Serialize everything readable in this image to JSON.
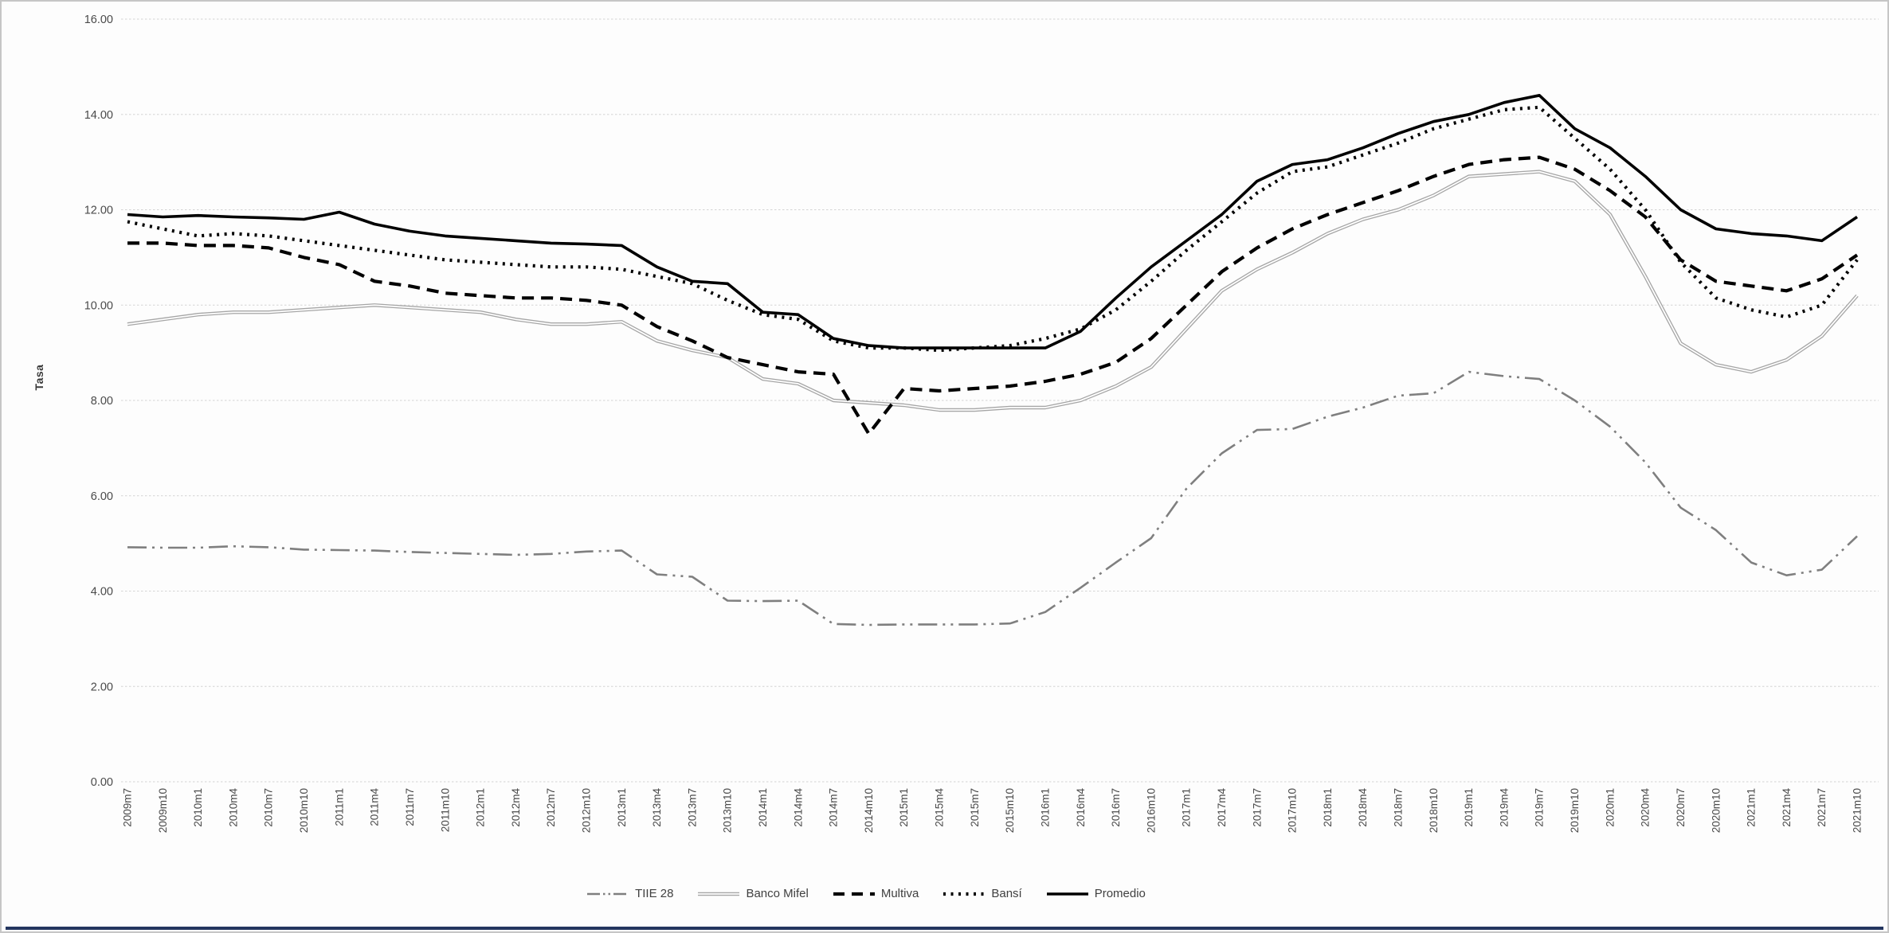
{
  "page": {
    "background": "#fdfdfd",
    "frame_border_color": "#c6c6c6",
    "bottom_bar_color": "#23355f"
  },
  "chart_data": {
    "type": "line",
    "title": "",
    "xlabel": "",
    "ylabel": "Tasa",
    "ylim": [
      0,
      16
    ],
    "ytick_step": 2,
    "ytick_labels": [
      "0.00",
      "2.00",
      "4.00",
      "6.00",
      "8.00",
      "10.00",
      "12.00",
      "14.00",
      "16.00"
    ],
    "grid": "horizontal-dashed",
    "grid_color": "#d4d4d4",
    "axis_label_color": "#4a4a4a",
    "legend_position": "bottom-center",
    "categories": [
      "2009m7",
      "2009m10",
      "2010m1",
      "2010m4",
      "2010m7",
      "2010m10",
      "2011m1",
      "2011m4",
      "2011m7",
      "2011m10",
      "2012m1",
      "2012m4",
      "2012m7",
      "2012m10",
      "2013m1",
      "2013m4",
      "2013m7",
      "2013m10",
      "2014m1",
      "2014m4",
      "2014m7",
      "2014m10",
      "2015m1",
      "2015m4",
      "2015m7",
      "2015m10",
      "2016m1",
      "2016m4",
      "2016m7",
      "2016m10",
      "2017m1",
      "2017m4",
      "2017m7",
      "2017m10",
      "2018m1",
      "2018m4",
      "2018m7",
      "2018m10",
      "2019m1",
      "2019m4",
      "2019m7",
      "2019m10",
      "2020m1",
      "2020m4",
      "2020m7",
      "2020m10",
      "2021m1",
      "2021m4",
      "2021m7",
      "2021m10"
    ],
    "series": [
      {
        "name": "TIIE 28",
        "style": "dash-dot",
        "color": "#7f7f7f",
        "width": 2.6,
        "values": [
          4.92,
          4.91,
          4.91,
          4.94,
          4.92,
          4.87,
          4.86,
          4.85,
          4.82,
          4.8,
          4.78,
          4.76,
          4.78,
          4.83,
          4.85,
          4.35,
          4.3,
          3.8,
          3.79,
          3.8,
          3.31,
          3.29,
          3.3,
          3.3,
          3.3,
          3.32,
          3.56,
          4.07,
          4.6,
          5.11,
          6.15,
          6.89,
          7.38,
          7.4,
          7.66,
          7.85,
          8.1,
          8.15,
          8.6,
          8.51,
          8.45,
          8.0,
          7.45,
          6.7,
          5.75,
          5.28,
          4.6,
          4.33,
          4.45,
          5.15
        ]
      },
      {
        "name": "Banco Mifel",
        "style": "double-solid",
        "color": "#a6a6a6",
        "width": 4.4,
        "values": [
          9.6,
          9.7,
          9.8,
          9.85,
          9.85,
          9.9,
          9.95,
          10.0,
          9.95,
          9.9,
          9.85,
          9.7,
          9.6,
          9.6,
          9.65,
          9.25,
          9.05,
          8.9,
          8.45,
          8.35,
          8.0,
          7.95,
          7.9,
          7.8,
          7.8,
          7.85,
          7.85,
          8.0,
          8.3,
          8.7,
          9.5,
          10.3,
          10.75,
          11.1,
          11.5,
          11.8,
          12.0,
          12.3,
          12.7,
          12.75,
          12.8,
          12.6,
          11.9,
          10.6,
          9.2,
          8.75,
          8.6,
          8.85,
          9.35,
          10.2
        ]
      },
      {
        "name": "Multiva",
        "style": "dashed",
        "color": "#000000",
        "width": 4.2,
        "values": [
          11.3,
          11.3,
          11.25,
          11.25,
          11.2,
          11.0,
          10.85,
          10.5,
          10.4,
          10.25,
          10.2,
          10.15,
          10.15,
          10.1,
          10.0,
          9.55,
          9.25,
          8.9,
          8.75,
          8.6,
          8.55,
          7.3,
          8.25,
          8.2,
          8.25,
          8.3,
          8.4,
          8.55,
          8.8,
          9.3,
          10.0,
          10.7,
          11.2,
          11.6,
          11.9,
          12.15,
          12.4,
          12.7,
          12.95,
          13.05,
          13.1,
          12.85,
          12.4,
          11.85,
          10.95,
          10.5,
          10.4,
          10.3,
          10.55,
          11.05
        ]
      },
      {
        "name": "Bansí",
        "style": "dotted",
        "color": "#000000",
        "width": 4.2,
        "values": [
          11.75,
          11.6,
          11.45,
          11.5,
          11.45,
          11.35,
          11.25,
          11.15,
          11.05,
          10.95,
          10.9,
          10.85,
          10.8,
          10.8,
          10.75,
          10.6,
          10.45,
          10.1,
          9.8,
          9.7,
          9.25,
          9.1,
          9.1,
          9.05,
          9.1,
          9.15,
          9.3,
          9.5,
          9.9,
          10.5,
          11.15,
          11.75,
          12.35,
          12.8,
          12.9,
          13.15,
          13.4,
          13.7,
          13.9,
          14.1,
          14.15,
          13.5,
          12.85,
          12.0,
          10.9,
          10.15,
          9.9,
          9.75,
          10.0,
          10.95
        ]
      },
      {
        "name": "Promedio",
        "style": "solid",
        "color": "#000000",
        "width": 3.6,
        "values": [
          11.9,
          11.85,
          11.88,
          11.85,
          11.83,
          11.8,
          11.95,
          11.7,
          11.55,
          11.45,
          11.4,
          11.35,
          11.3,
          11.28,
          11.25,
          10.8,
          10.5,
          10.45,
          9.85,
          9.8,
          9.3,
          9.15,
          9.1,
          9.1,
          9.1,
          9.1,
          9.1,
          9.45,
          10.15,
          10.8,
          11.35,
          11.9,
          12.6,
          12.95,
          13.05,
          13.3,
          13.6,
          13.85,
          14.0,
          14.25,
          14.4,
          13.7,
          13.3,
          12.7,
          12.0,
          11.6,
          11.5,
          11.45,
          11.35,
          11.85
        ]
      }
    ]
  }
}
